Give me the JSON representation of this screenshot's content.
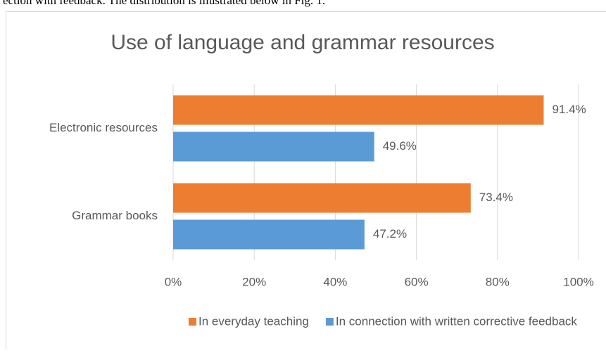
{
  "text_above": "ection with feedback. The distribution is illustrated below in Fig. 1.",
  "chart_data": {
    "type": "hbar",
    "title": "Use of language and grammar resources",
    "categories": [
      "Electronic resources",
      "Grammar books"
    ],
    "series": [
      {
        "name": "In everyday teaching",
        "color": "#ed7d31",
        "values": [
          91.4,
          73.4
        ],
        "value_labels": [
          "91.4%",
          "73.4%"
        ]
      },
      {
        "name": "In connection with written corrective feedback",
        "color": "#5b9bd5",
        "values": [
          49.6,
          47.2
        ],
        "value_labels": [
          "49.6%",
          "47.2%"
        ]
      }
    ],
    "xlim": [
      0,
      100
    ],
    "xticks": [
      {
        "value": 0,
        "label": "0%"
      },
      {
        "value": 20,
        "label": "20%"
      },
      {
        "value": 40,
        "label": "40%"
      },
      {
        "value": 60,
        "label": "60%"
      },
      {
        "value": 80,
        "label": "80%"
      },
      {
        "value": 100,
        "label": "100%"
      }
    ],
    "grid": true,
    "legend": "bottom"
  }
}
